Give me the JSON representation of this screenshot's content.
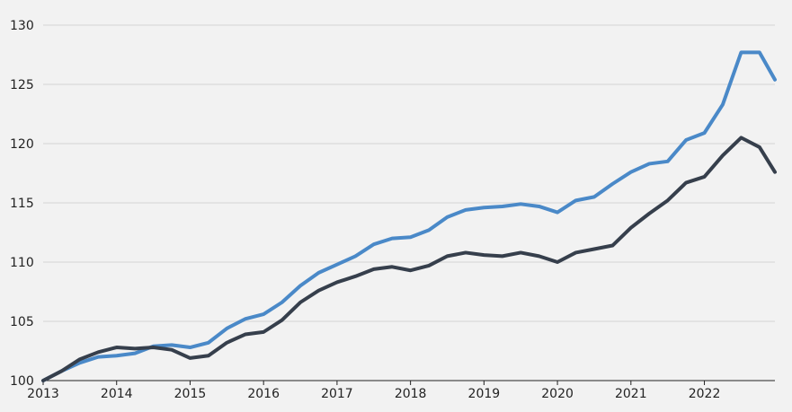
{
  "chart_data": {
    "type": "line",
    "title": "",
    "xlabel": "",
    "ylabel": "",
    "grid": true,
    "legend": "none",
    "xlim": [
      2013.0,
      2022.96
    ],
    "ylim": [
      100,
      130
    ],
    "y_ticks": [
      100,
      105,
      110,
      115,
      120,
      125,
      130
    ],
    "x_ticks": [
      2013,
      2014,
      2015,
      2016,
      2017,
      2018,
      2019,
      2020,
      2021,
      2022
    ],
    "x": [
      2013.0,
      2013.25,
      2013.5,
      2013.75,
      2014.0,
      2014.25,
      2014.5,
      2014.75,
      2015.0,
      2015.25,
      2015.5,
      2015.75,
      2016.0,
      2016.25,
      2016.5,
      2016.75,
      2017.0,
      2017.25,
      2017.5,
      2017.75,
      2018.0,
      2018.25,
      2018.5,
      2018.75,
      2019.0,
      2019.25,
      2019.5,
      2019.75,
      2020.0,
      2020.25,
      2020.5,
      2020.75,
      2021.0,
      2021.25,
      2021.5,
      2021.75,
      2022.0,
      2022.25,
      2022.5,
      2022.75,
      2022.96
    ],
    "series": [
      {
        "color": "#4a89c8",
        "values": [
          100.0,
          100.8,
          101.5,
          102.0,
          102.1,
          102.3,
          102.9,
          103.0,
          102.8,
          103.2,
          104.4,
          105.2,
          105.6,
          106.6,
          108.0,
          109.1,
          109.8,
          110.5,
          111.5,
          112.0,
          112.1,
          112.7,
          113.8,
          114.4,
          114.6,
          114.7,
          114.9,
          114.7,
          114.2,
          115.2,
          115.5,
          116.6,
          117.6,
          118.3,
          118.5,
          120.3,
          120.9,
          123.3,
          127.7,
          127.7,
          125.4
        ]
      },
      {
        "color": "#363f4c",
        "values": [
          100.0,
          100.8,
          101.8,
          102.4,
          102.8,
          102.7,
          102.8,
          102.6,
          101.9,
          102.1,
          103.2,
          103.9,
          104.1,
          105.1,
          106.6,
          107.6,
          108.3,
          108.8,
          109.4,
          109.6,
          109.3,
          109.7,
          110.5,
          110.8,
          110.6,
          110.5,
          110.8,
          110.5,
          110.0,
          110.8,
          111.1,
          111.4,
          112.9,
          114.1,
          115.2,
          116.7,
          117.2,
          119.0,
          120.5,
          119.7,
          117.6
        ]
      }
    ]
  }
}
